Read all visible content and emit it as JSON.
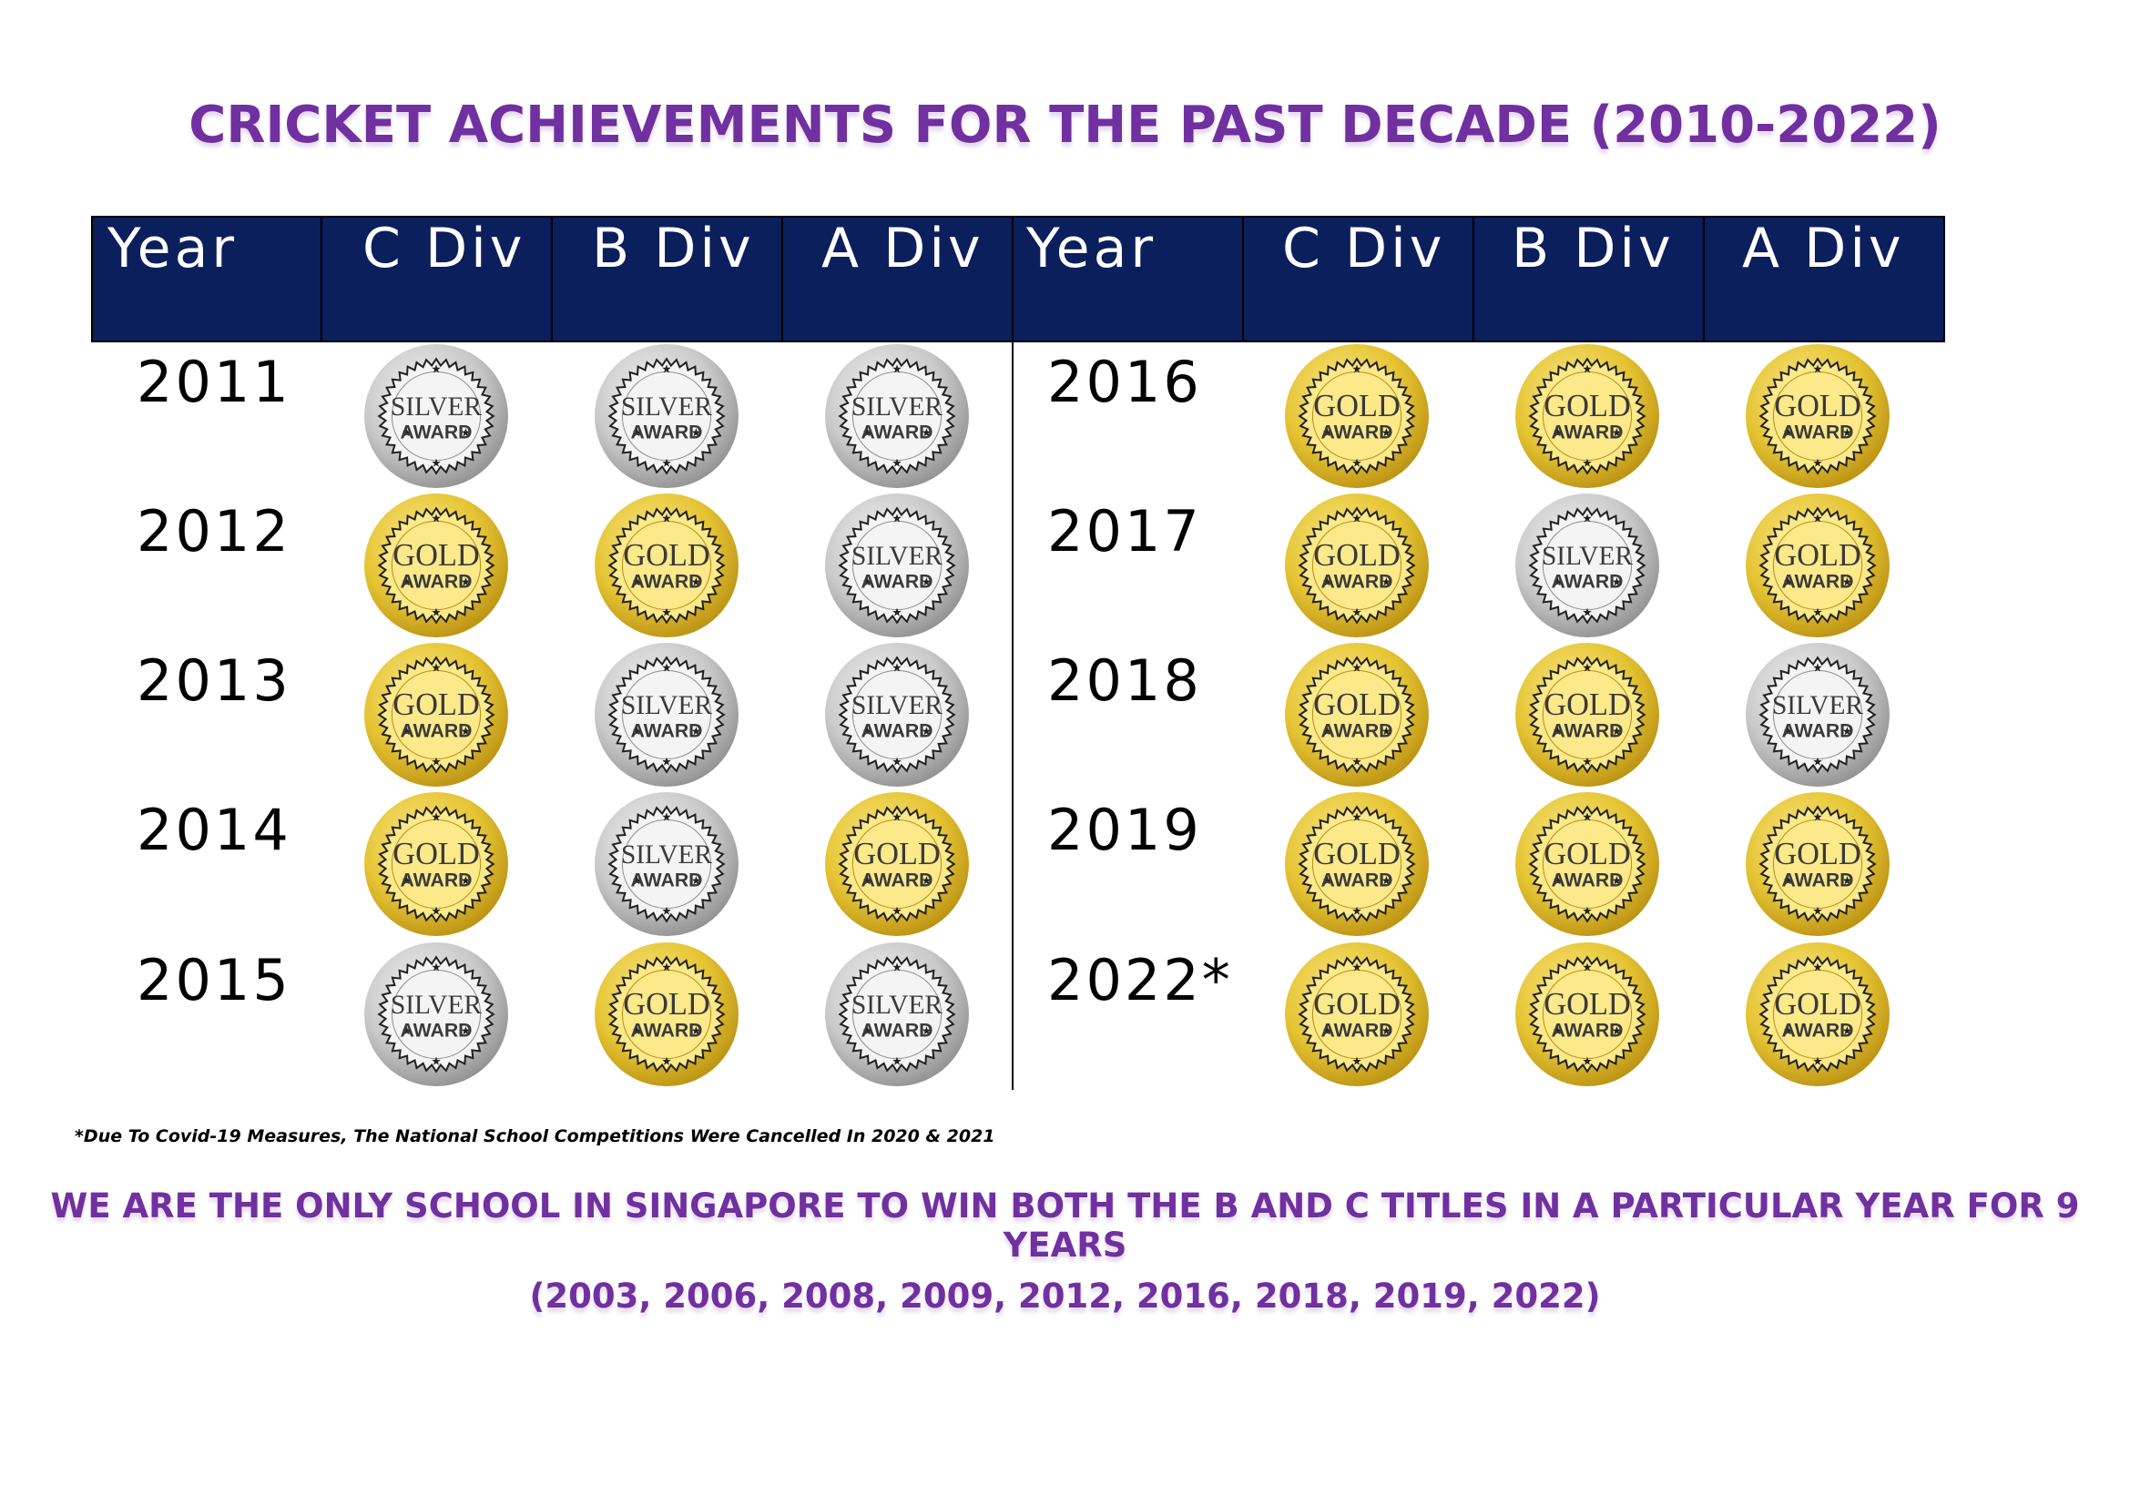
{
  "title": "CRICKET ACHIEVEMENTS FOR THE PAST DECADE (2010-2022)",
  "table": {
    "headers": [
      "Year",
      "C Div",
      "B Div",
      "A Div",
      "Year",
      "C Div",
      "B Div",
      "A Div"
    ],
    "left_rows": [
      {
        "year": "2011",
        "awards": [
          "silver",
          "silver",
          "silver"
        ]
      },
      {
        "year": "2012",
        "awards": [
          "gold",
          "gold",
          "silver"
        ]
      },
      {
        "year": "2013",
        "awards": [
          "gold",
          "silver",
          "silver"
        ]
      },
      {
        "year": "2014",
        "awards": [
          "gold",
          "silver",
          "gold"
        ]
      },
      {
        "year": "2015",
        "awards": [
          "silver",
          "gold",
          "silver"
        ]
      }
    ],
    "right_rows": [
      {
        "year": "2016",
        "awards": [
          "gold",
          "gold",
          "gold"
        ]
      },
      {
        "year": "2017",
        "awards": [
          "gold",
          "silver",
          "gold"
        ]
      },
      {
        "year": "2018",
        "awards": [
          "gold",
          "gold",
          "silver"
        ]
      },
      {
        "year": "2019",
        "awards": [
          "gold",
          "gold",
          "gold"
        ]
      },
      {
        "year": "2022*",
        "awards": [
          "gold",
          "gold",
          "gold"
        ]
      }
    ]
  },
  "medal_text": {
    "gold": [
      "GOLD",
      "AWARD"
    ],
    "silver": [
      "SILVER",
      "AWARD"
    ]
  },
  "colors": {
    "header_bg": "#0b1f5c",
    "title": "#7030a0",
    "gold": "#e5c433",
    "silver": "#c9c9c9"
  },
  "footnote": "*Due To Covid-19 Measures, The National School Competitions Were Cancelled In 2020 & 2021",
  "claim_line1": "WE ARE THE ONLY SCHOOL IN SINGAPORE TO WIN BOTH THE B AND C TITLES IN A PARTICULAR YEAR FOR 9 YEARS",
  "claim_line2": "(2003, 2006, 2008, 2009, 2012, 2016, 2018, 2019, 2022)"
}
